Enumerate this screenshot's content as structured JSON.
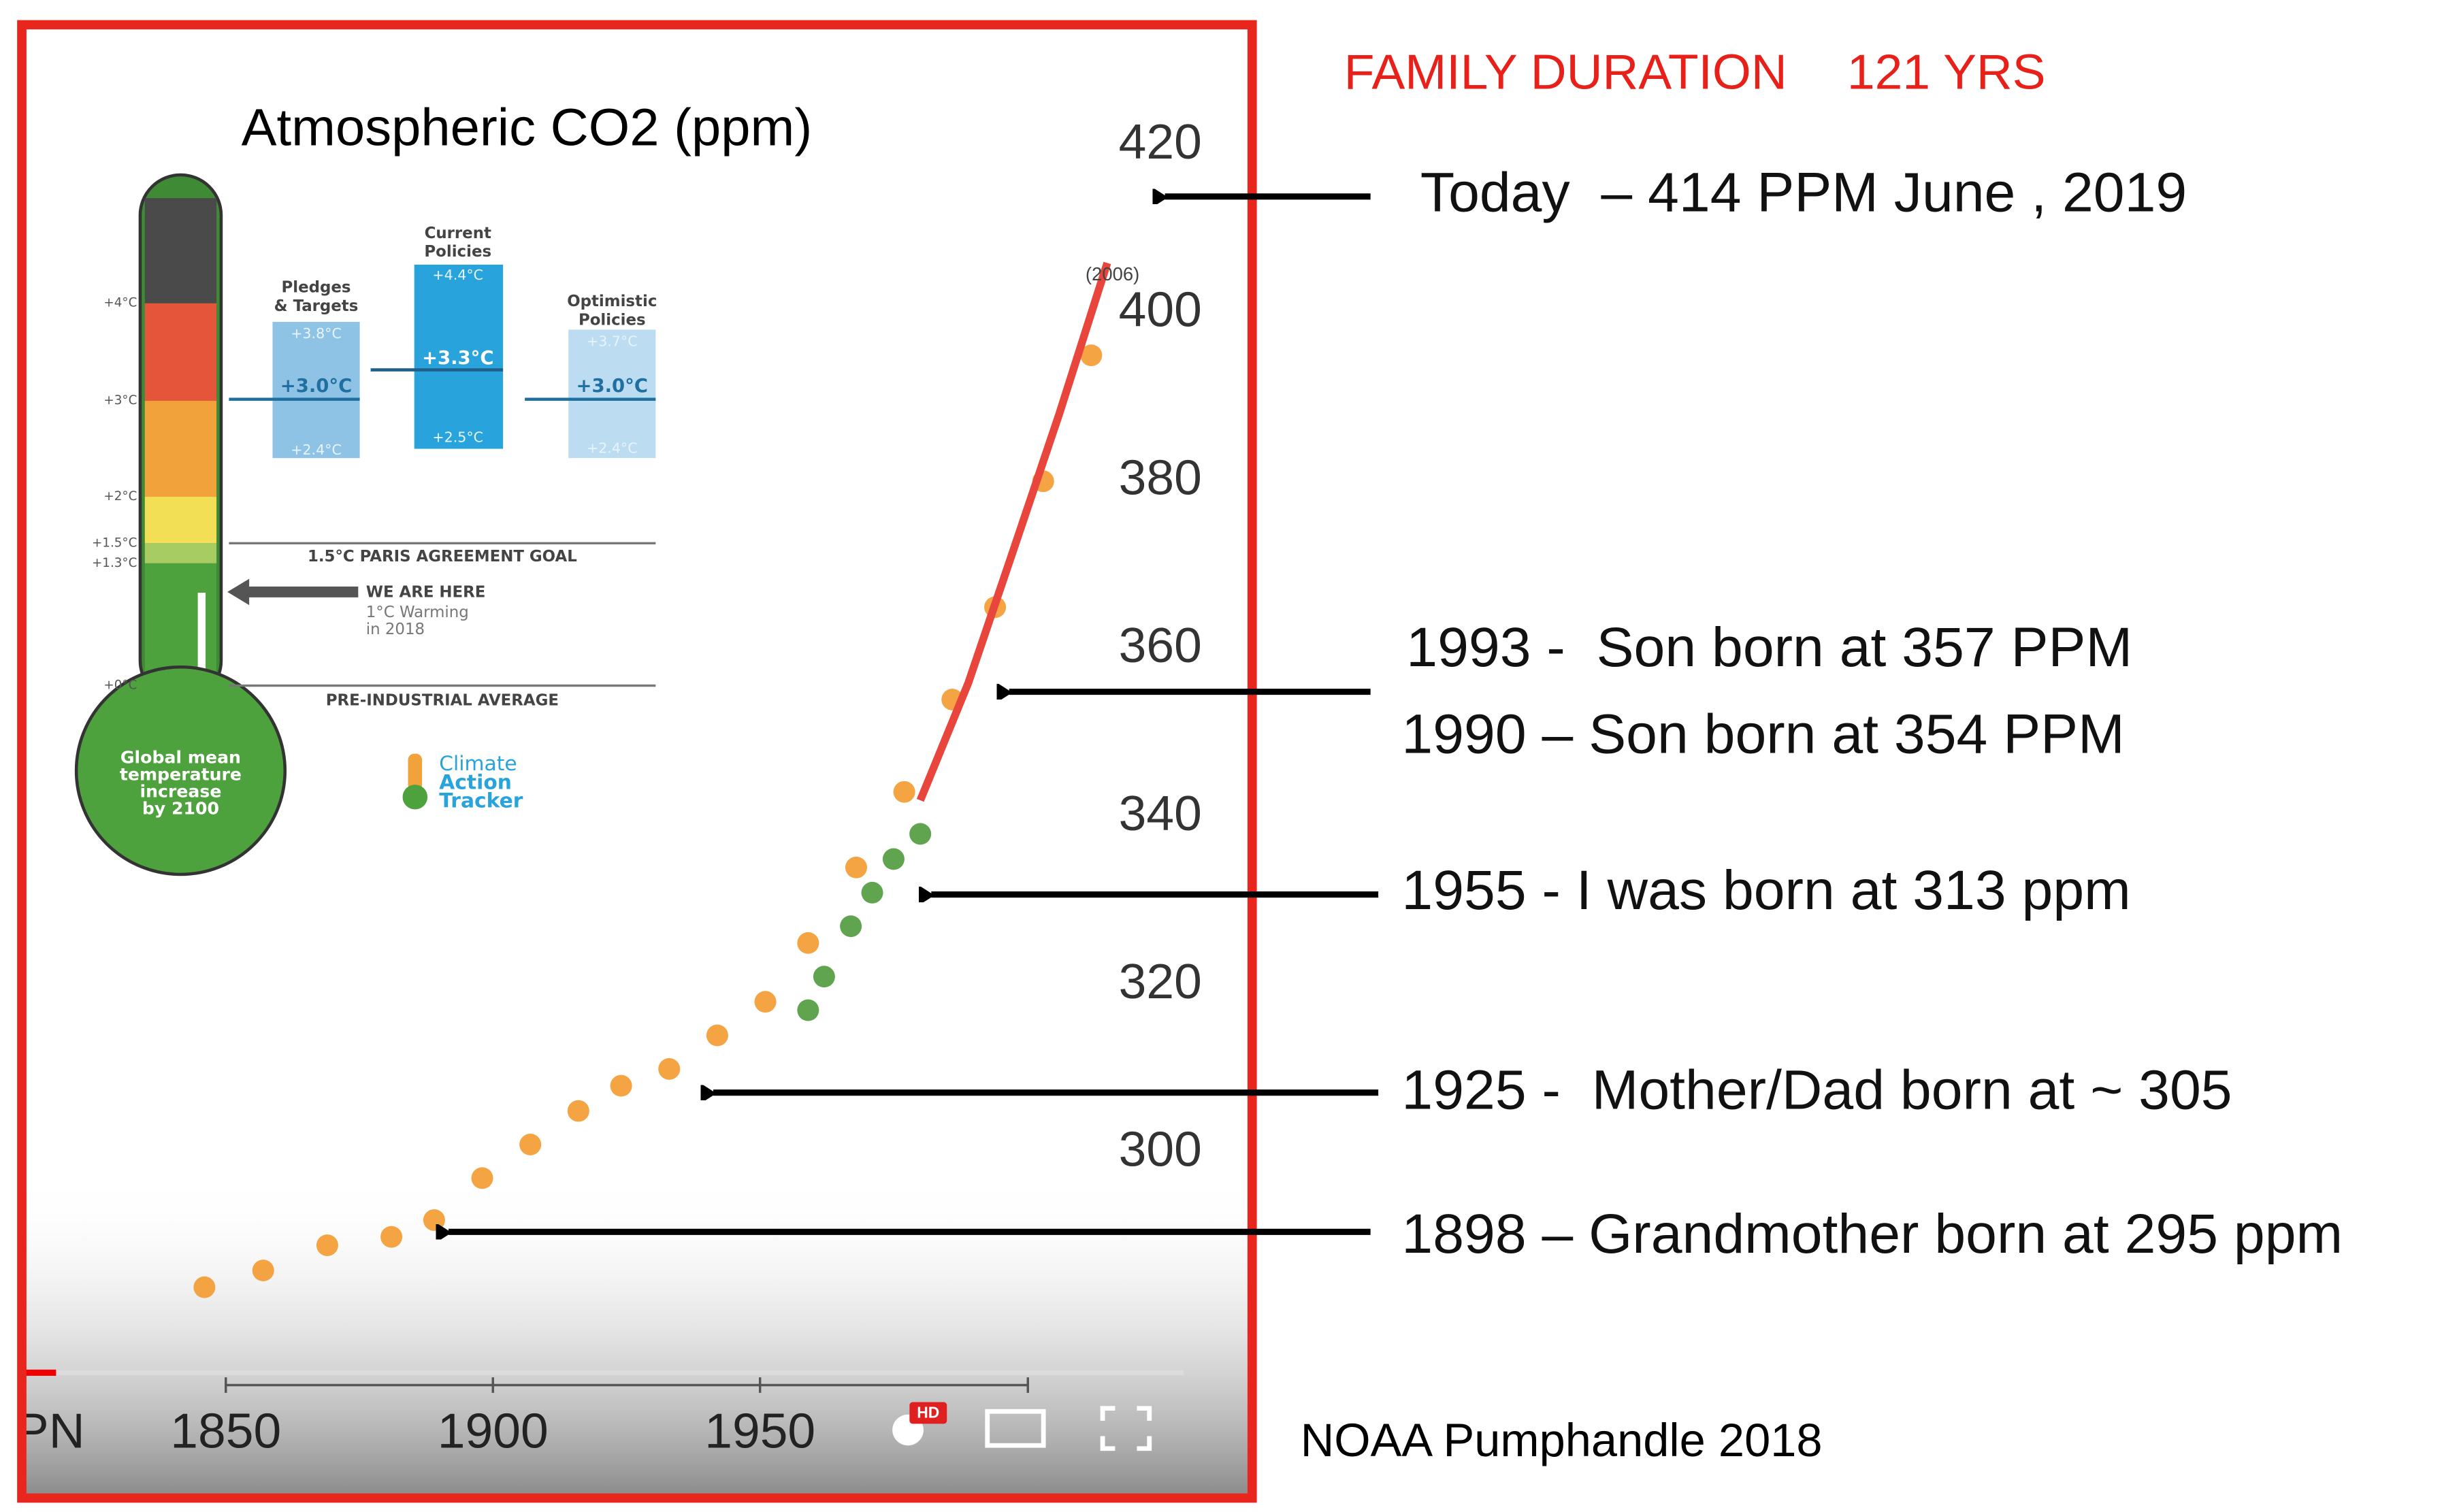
{
  "chart_data": {
    "type": "scatter",
    "title": "Atmospheric CO2 (ppm)",
    "annotation": "(2006)",
    "x_partial_label": "PN",
    "xlim": [
      1814,
      2029
    ],
    "ylim": [
      275,
      435
    ],
    "xticks": [
      1850,
      1900,
      1950
    ],
    "yticks": [
      300,
      320,
      340,
      360,
      380,
      400,
      420
    ],
    "grid": false,
    "series": [
      {
        "color": "#f39a2e",
        "x": [
          1846,
          1857,
          1869,
          1881,
          1889,
          1898,
          1907,
          1916,
          1924,
          1933,
          1942,
          1951,
          1959,
          1968,
          1977,
          1986,
          1994,
          2003,
          2012
        ],
        "values": [
          284,
          286,
          289,
          290,
          292,
          297,
          301,
          305,
          308,
          310,
          314,
          318,
          325,
          334,
          343,
          354,
          365,
          380,
          395
        ]
      },
      {
        "color": "#4f9a3c",
        "x": [
          1959,
          1962,
          1967,
          1971,
          1975,
          1980
        ],
        "values": [
          317,
          321,
          327,
          331,
          335,
          338
        ]
      },
      {
        "type": "line",
        "color": "#e8453c",
        "x": [
          1980,
          1989,
          1997,
          2006,
          2015
        ],
        "values": [
          342,
          356,
          371,
          388,
          406
        ]
      }
    ]
  },
  "player": {
    "hd_badge": "HD"
  },
  "infographic": {
    "temps": [
      "+4°C",
      "+3°C",
      "+2°C",
      "+1.5°C",
      "+1.3°C",
      "+0°C"
    ],
    "pledges": {
      "title": [
        "Pledges",
        "& Targets"
      ],
      "high": "+3.8°C",
      "mid": "+3.0°C",
      "low": "+2.4°C"
    },
    "current": {
      "title": [
        "Current",
        "Policies"
      ],
      "high": "+4.4°C",
      "mid": "+3.3°C",
      "low": "+2.5°C"
    },
    "optimistic": {
      "title": [
        "Optimistic",
        "Policies"
      ],
      "high": "+3.7°C",
      "mid": "+3.0°C",
      "low": "+2.4°C"
    },
    "paris": "1.5°C PARIS AGREEMENT GOAL",
    "here": "WE ARE HERE",
    "here_note": [
      "1°C Warming",
      "in 2018"
    ],
    "preindustrial": "PRE-INDUSTRIAL AVERAGE",
    "bulb": [
      "Global mean",
      "temperature",
      "increase",
      "by 2100"
    ],
    "logo": [
      "Climate",
      "Action",
      "Tracker"
    ]
  },
  "annotations": {
    "family_duration": "FAMILY DURATION",
    "years": "121 YRS",
    "source": "NOAA Pumphandle 2018",
    "notes": [
      "Today  – 414 PPM June , 2019",
      "1993 -  Son born at 357 PPM",
      "1990 – Son born at 354 PPM",
      "1955 - I was born at 313 ppm",
      "1925 -  Mother/Dad born at ~ 305",
      "1898 – Grandmother born at 295 ppm"
    ]
  }
}
